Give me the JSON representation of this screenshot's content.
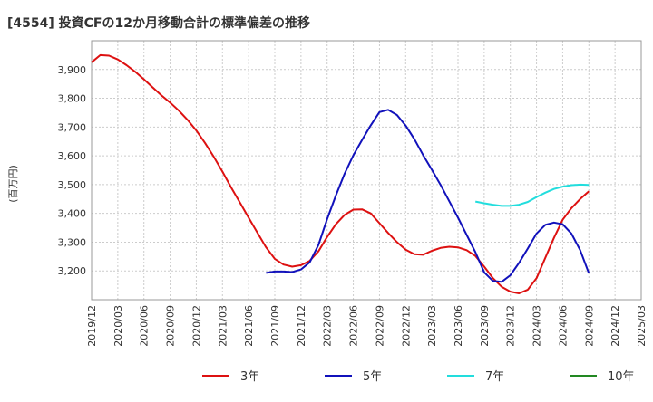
{
  "chart_data": {
    "type": "line",
    "title": "[4554]  投資CFの12か月移動合計の標準偏差の推移",
    "ylabel": "(百万円)",
    "xlabel": "",
    "ylim": [
      3100,
      4000
    ],
    "yticks": [
      3200,
      3300,
      3400,
      3500,
      3600,
      3700,
      3800,
      3900
    ],
    "ytick_labels": [
      "3,200",
      "3,300",
      "3,400",
      "3,500",
      "3,600",
      "3,700",
      "3,800",
      "3,900"
    ],
    "xlim": [
      "2019-12",
      "2025-03"
    ],
    "xtick_labels": [
      "2019/12",
      "2020/03",
      "2020/06",
      "2020/09",
      "2020/12",
      "2021/03",
      "2021/06",
      "2021/09",
      "2021/12",
      "2022/03",
      "2022/06",
      "2022/09",
      "2022/12",
      "2023/03",
      "2023/06",
      "2023/09",
      "2023/12",
      "2024/03",
      "2024/06",
      "2024/09",
      "2024/12",
      "2025/03"
    ],
    "grid": true,
    "legend_position": "bottom",
    "series": [
      {
        "name": "3年",
        "color": "#dd1111",
        "x": [
          "2019-12",
          "2020-01",
          "2020-02",
          "2020-03",
          "2020-04",
          "2020-05",
          "2020-06",
          "2020-07",
          "2020-08",
          "2020-09",
          "2020-10",
          "2020-11",
          "2020-12",
          "2021-01",
          "2021-02",
          "2021-03",
          "2021-04",
          "2021-05",
          "2021-06",
          "2021-07",
          "2021-08",
          "2021-09",
          "2021-10",
          "2021-11",
          "2021-12",
          "2022-01",
          "2022-02",
          "2022-03",
          "2022-04",
          "2022-05",
          "2022-06",
          "2022-07",
          "2022-08",
          "2022-09",
          "2022-10",
          "2022-11",
          "2022-12",
          "2023-01",
          "2023-02",
          "2023-03",
          "2023-04",
          "2023-05",
          "2023-06",
          "2023-07",
          "2023-08",
          "2023-09",
          "2023-10",
          "2023-11",
          "2023-12",
          "2024-01",
          "2024-02",
          "2024-03",
          "2024-04",
          "2024-05",
          "2024-06",
          "2024-07",
          "2024-08",
          "2024-09"
        ],
        "values": [
          3925,
          3950,
          3948,
          3935,
          3915,
          3892,
          3866,
          3838,
          3810,
          3785,
          3757,
          3725,
          3688,
          3645,
          3597,
          3545,
          3490,
          3438,
          3385,
          3333,
          3282,
          3242,
          3222,
          3215,
          3220,
          3235,
          3268,
          3318,
          3362,
          3395,
          3413,
          3414,
          3400,
          3366,
          3332,
          3300,
          3274,
          3258,
          3256,
          3270,
          3280,
          3284,
          3282,
          3272,
          3252,
          3215,
          3175,
          3145,
          3128,
          3122,
          3135,
          3175,
          3245,
          3315,
          3378,
          3418,
          3450,
          3477
        ]
      },
      {
        "name": "5年",
        "color": "#1111bb",
        "x": [
          "2021-08",
          "2021-09",
          "2021-10",
          "2021-11",
          "2021-12",
          "2022-01",
          "2022-02",
          "2022-03",
          "2022-04",
          "2022-05",
          "2022-06",
          "2022-07",
          "2022-08",
          "2022-09",
          "2022-10",
          "2022-11",
          "2022-12",
          "2023-01",
          "2023-02",
          "2023-03",
          "2023-04",
          "2023-05",
          "2023-06",
          "2023-07",
          "2023-08",
          "2023-09",
          "2023-10",
          "2023-11",
          "2023-12",
          "2024-01",
          "2024-02",
          "2024-03",
          "2024-04",
          "2024-05",
          "2024-06",
          "2024-07",
          "2024-08",
          "2024-09"
        ],
        "values": [
          3193,
          3198,
          3198,
          3196,
          3205,
          3230,
          3290,
          3380,
          3462,
          3538,
          3602,
          3655,
          3706,
          3752,
          3760,
          3742,
          3705,
          3658,
          3603,
          3552,
          3499,
          3442,
          3385,
          3325,
          3265,
          3195,
          3165,
          3162,
          3185,
          3228,
          3278,
          3330,
          3360,
          3368,
          3362,
          3330,
          3272,
          3192
        ]
      },
      {
        "name": "7年",
        "color": "#22dddd",
        "x": [
          "2023-08",
          "2023-09",
          "2023-10",
          "2023-11",
          "2023-12",
          "2024-01",
          "2024-02",
          "2024-03",
          "2024-04",
          "2024-05",
          "2024-06",
          "2024-07",
          "2024-08",
          "2024-09"
        ],
        "values": [
          3441,
          3435,
          3430,
          3426,
          3426,
          3430,
          3440,
          3457,
          3472,
          3485,
          3493,
          3498,
          3500,
          3499
        ]
      },
      {
        "name": "10年",
        "color": "#228822",
        "x": [],
        "values": []
      }
    ]
  }
}
